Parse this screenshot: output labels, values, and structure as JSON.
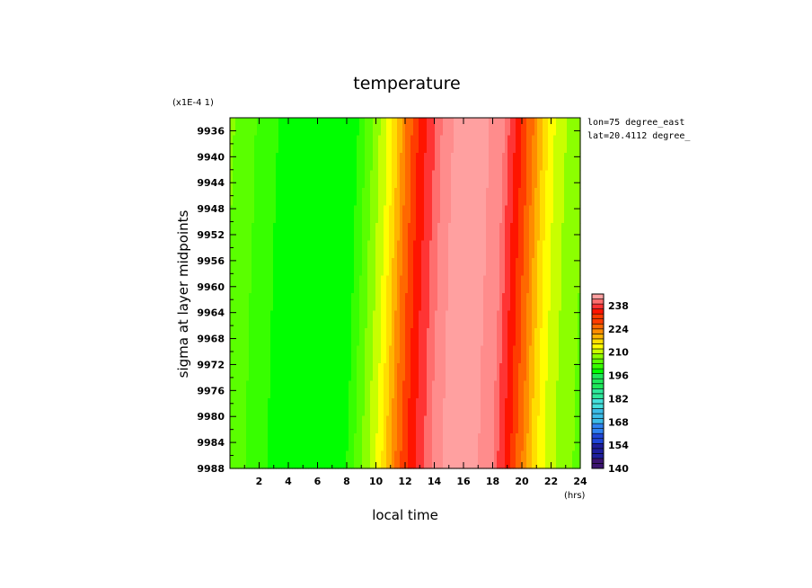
{
  "chart_data": {
    "type": "heatmap",
    "title": "temperature",
    "xlabel": "local time",
    "ylabel": "sigma at layer midpoints",
    "x_units": "(hrs)",
    "y_scale_note": "(x1E-4 1)",
    "annotations": [
      "lon=75 degree_east",
      "lat=20.4112 degree_"
    ],
    "xlim": [
      0,
      24
    ],
    "ylim": [
      9934,
      9988
    ],
    "y_inverted": true,
    "x_ticks": [
      "2",
      "4",
      "6",
      "8",
      "10",
      "12",
      "14",
      "16",
      "18",
      "20",
      "22",
      "24"
    ],
    "y_ticks": [
      "9936",
      "9940",
      "9944",
      "9948",
      "9952",
      "9956",
      "9960",
      "9964",
      "9968",
      "9972",
      "9976",
      "9980",
      "9984",
      "9988"
    ],
    "colorbar": {
      "range": [
        140,
        245
      ],
      "labels": [
        "140",
        "154",
        "168",
        "182",
        "196",
        "210",
        "224",
        "238"
      ]
    },
    "profile_x": [
      0,
      1,
      2,
      3,
      4,
      5,
      6,
      7,
      7.5,
      8,
      8.5,
      9,
      9.5,
      10,
      10.5,
      11,
      11.5,
      12,
      12.5,
      13,
      13.5,
      14,
      15,
      16,
      17,
      18,
      18.5,
      19,
      19.5,
      20,
      20.5,
      21,
      21.5,
      22,
      22.5,
      23,
      24
    ],
    "profile_t": [
      205,
      203,
      201,
      199,
      197,
      196,
      196,
      197,
      198,
      200,
      203,
      206,
      209,
      212,
      216,
      221,
      226,
      231,
      235,
      238,
      240,
      242,
      244,
      244,
      243,
      241,
      238,
      234,
      229,
      224,
      219,
      215,
      212,
      210,
      208,
      207,
      205
    ],
    "vertical_tilt_hours": 0.8,
    "gridlines": false
  }
}
